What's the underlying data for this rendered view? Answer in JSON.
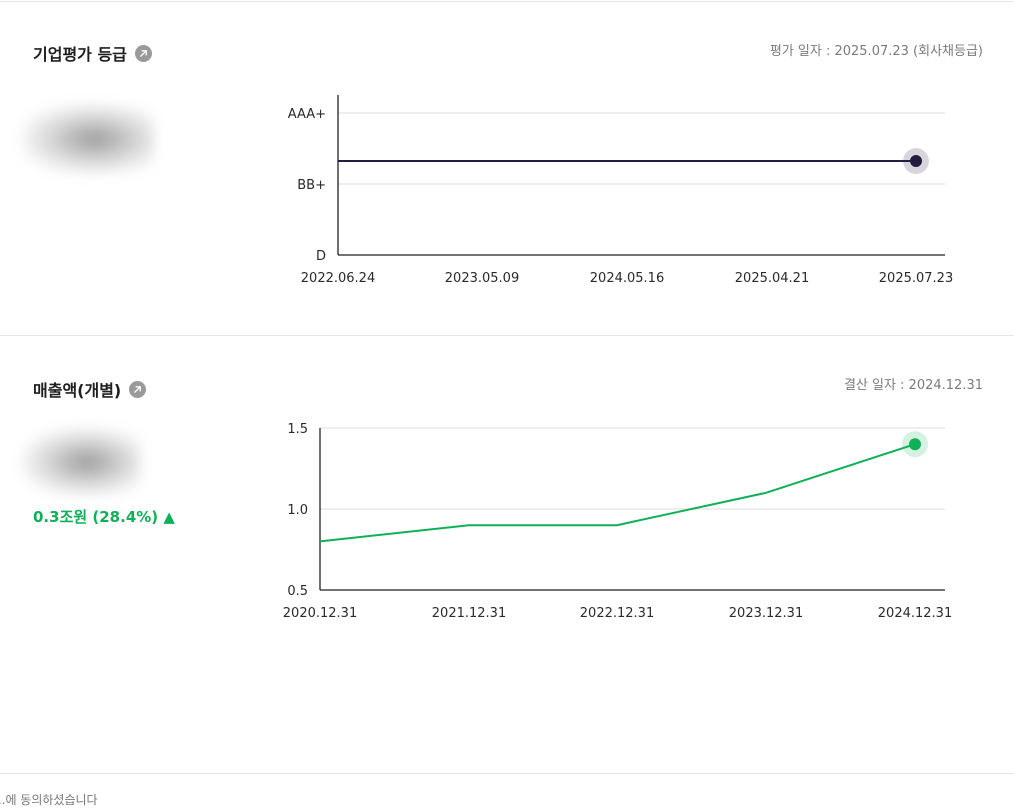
{
  "credit_section": {
    "title": "기업평가 등급",
    "icon": "external-link-icon",
    "date_note": "평가 일자 : 2025.07.23 (회사채등급)"
  },
  "sales_section": {
    "title": "매출액(개별)",
    "icon": "external-link-icon",
    "date_note": "결산 일자 : 2024.12.31",
    "change": "0.3조원 (28.4%) ▲",
    "change_color": "#10b058"
  },
  "footer": {
    "text": "...에 동의하셨습니다"
  },
  "chart_data": [
    {
      "type": "line",
      "x": [
        "2022.06.24",
        "2023.05.09",
        "2024.05.16",
        "2025.04.21",
        "2025.07.23"
      ],
      "y_ticks": [
        "AAA+",
        "BB+",
        "D"
      ],
      "series": [
        {
          "values": [
            "BBB+",
            "BBB+",
            "BBB+",
            "BBB+",
            "BBB+"
          ],
          "color": "#251c3f"
        }
      ],
      "highlight_last": true,
      "grid": true
    },
    {
      "type": "line",
      "x": [
        "2020.12.31",
        "2021.12.31",
        "2022.12.31",
        "2023.12.31",
        "2024.12.31"
      ],
      "y_ticks": [
        "1.5",
        "1.0",
        "0.5"
      ],
      "ylim": [
        0.5,
        1.5
      ],
      "series": [
        {
          "values": [
            0.8,
            0.9,
            0.9,
            1.1,
            1.4
          ],
          "color": "#10b058"
        }
      ],
      "highlight_last": true,
      "grid": true
    }
  ]
}
